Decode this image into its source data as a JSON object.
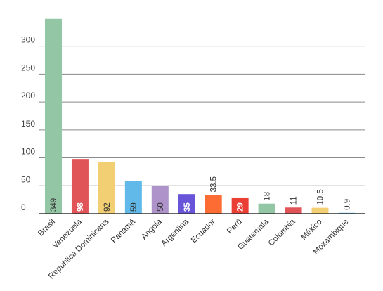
{
  "chart_data": {
    "type": "bar",
    "categories": [
      "Brasil",
      "Venezuela",
      "República Dominicana",
      "Panamá",
      "Angola",
      "Argentina",
      "Ecuador",
      "Perú",
      "Guatemala",
      "Colombia",
      "México",
      "Mozambique"
    ],
    "values": [
      349,
      98,
      92,
      59,
      50,
      35,
      33.5,
      29,
      18,
      11,
      10.5,
      0.9
    ],
    "value_labels": [
      "349",
      "98",
      "92",
      "59",
      "50",
      "35",
      "33.5",
      "29",
      "18",
      "11",
      "10.5",
      "0.9"
    ],
    "bar_colors": [
      "#93c6a5",
      "#e05458",
      "#f2cf73",
      "#60b9e8",
      "#ad93c9",
      "#6854d8",
      "#fd6c33",
      "#ea3e35",
      "#93c6a5",
      "#e05458",
      "#f2cf73",
      "#60b9e8"
    ],
    "label_colors": [
      "#333333",
      "#ffffff",
      "#333333",
      "#333333",
      "#333333",
      "#ffffff",
      "#333333",
      "#ffffff",
      "#333333",
      "#333333",
      "#333333",
      "#333333"
    ],
    "label_inside": [
      true,
      true,
      true,
      true,
      true,
      true,
      false,
      true,
      false,
      false,
      false,
      false
    ],
    "title": "",
    "xlabel": "",
    "ylabel": "",
    "ylim": [
      0,
      350
    ],
    "yticks": [
      0,
      50,
      100,
      150,
      200,
      250,
      300
    ],
    "ytick_labels": [
      "0",
      "50",
      "100",
      "150",
      "200",
      "250",
      "300"
    ],
    "grid": true,
    "legend": "none"
  }
}
